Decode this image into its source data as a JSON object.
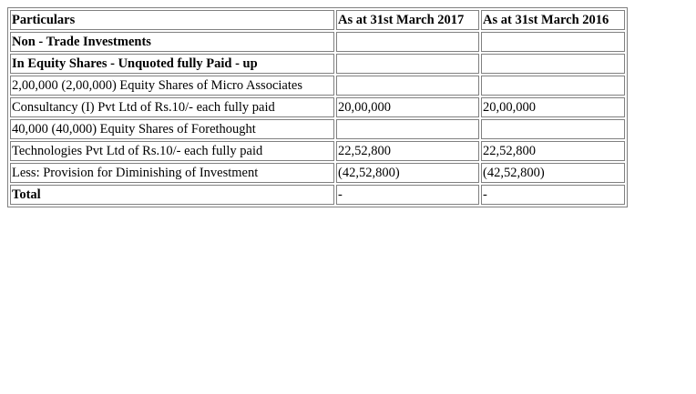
{
  "header": {
    "particulars": "Particulars",
    "col2017": "As at 31st March 2017",
    "col2016": "As at 31st March 2016"
  },
  "rows": [
    {
      "label": "Non - Trade Investments",
      "v2017": "",
      "v2016": "",
      "bold": true
    },
    {
      "label": "In Equity Shares - Unquoted fully Paid - up",
      "v2017": "",
      "v2016": "",
      "bold": true
    },
    {
      "label": "2,00,000 (2,00,000) Equity Shares of Micro Associates",
      "v2017": "",
      "v2016": "",
      "bold": false
    },
    {
      "label": "Consultancy (I) Pvt Ltd of Rs.10/- each fully paid",
      "v2017": "20,00,000",
      "v2016": "20,00,000",
      "bold": false
    },
    {
      "label": "40,000 (40,000) Equity Shares of Forethought",
      "v2017": "",
      "v2016": "",
      "bold": false
    },
    {
      "label": "Technologies Pvt Ltd of Rs.10/- each fully paid",
      "v2017": "22,52,800",
      "v2016": "22,52,800",
      "bold": false
    },
    {
      "label": "Less: Provision for Diminishing of Investment",
      "v2017": "(42,52,800)",
      "v2016": "(42,52,800)",
      "bold": false
    },
    {
      "label": "Total",
      "v2017": "-",
      "v2016": "-",
      "bold": true
    }
  ]
}
